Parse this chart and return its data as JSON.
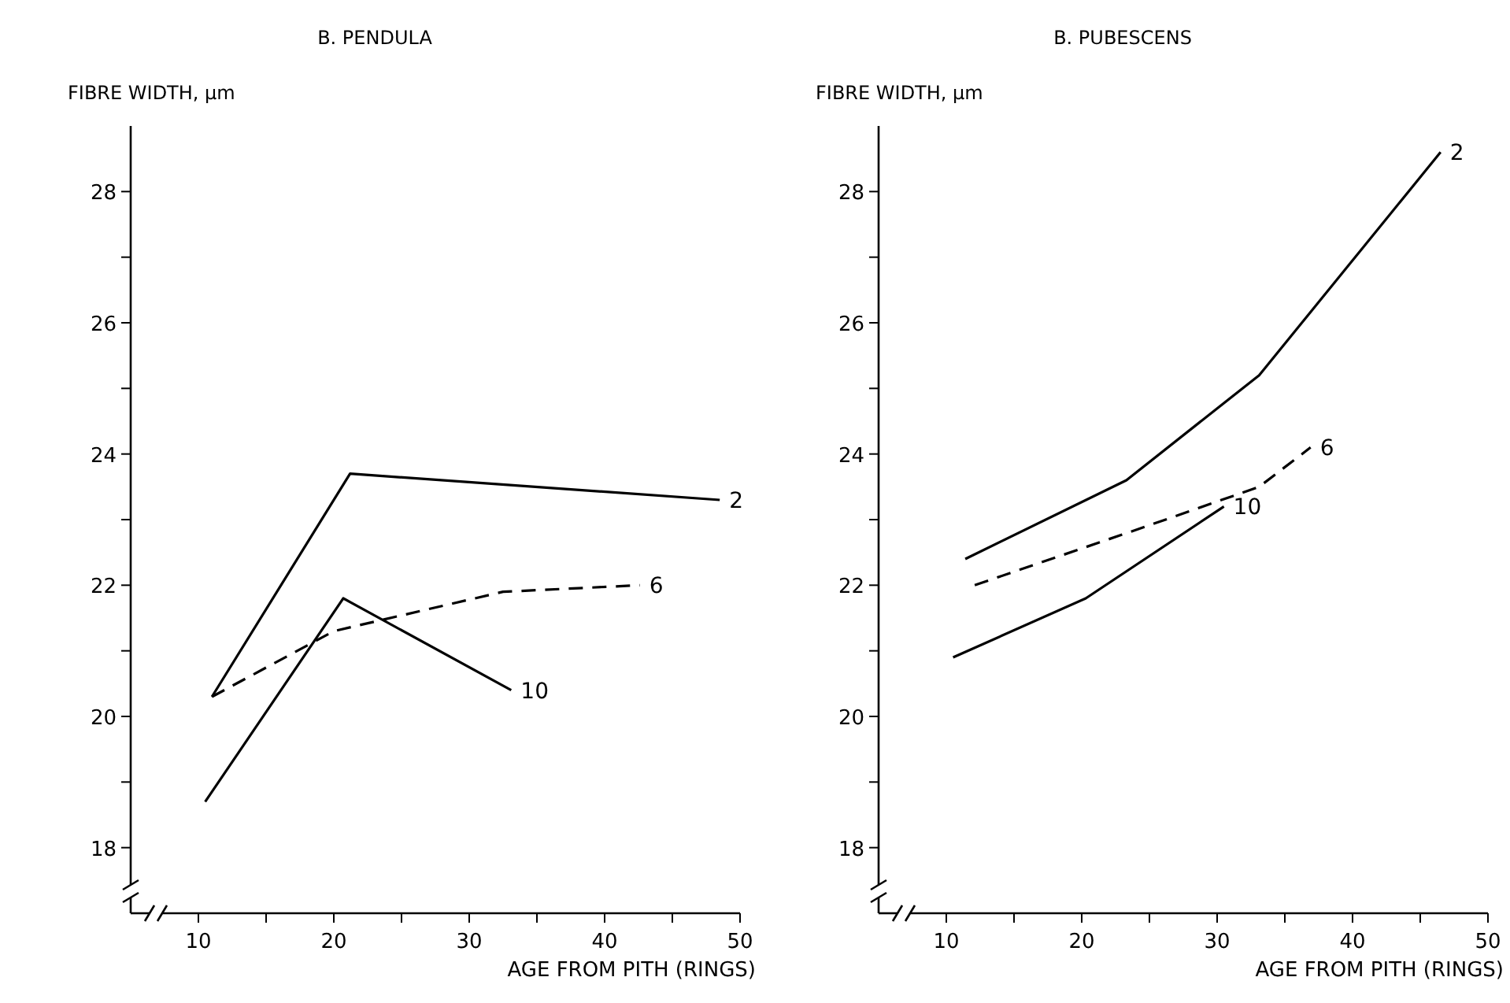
{
  "chart_data": [
    {
      "type": "line",
      "title": "B. PENDULA",
      "ylabel": "FIBRE WIDTH, μm",
      "xlabel": "AGE FROM PITH (RINGS)",
      "xlim": [
        5,
        50
      ],
      "ylim": [
        17,
        29
      ],
      "xticks": [
        10,
        {
          "value": 15,
          "label": null
        },
        20,
        {
          "value": 25,
          "label": null
        },
        30,
        {
          "value": 35,
          "label": null
        },
        40,
        {
          "value": 45,
          "label": null
        },
        50
      ],
      "yticks": [
        18,
        {
          "value": 19,
          "label": null
        },
        20,
        {
          "value": 21,
          "label": null
        },
        22,
        {
          "value": 23,
          "label": null
        },
        24,
        {
          "value": 25,
          "label": null
        },
        26,
        {
          "value": 27,
          "label": null
        },
        28
      ],
      "grid": false,
      "marker": "none",
      "series": [
        {
          "name": "2",
          "color": "#000000",
          "line_style": "solid",
          "x": [
            11,
            21.2,
            48.5
          ],
          "values": [
            20.3,
            23.7,
            23.3
          ]
        },
        {
          "name": "6",
          "color": "#000000",
          "line_style": "dashed",
          "x": [
            11,
            20,
            32.5,
            42.6
          ],
          "values": [
            20.3,
            21.3,
            21.9,
            22
          ]
        },
        {
          "name": "10",
          "color": "#000000",
          "line_style": "solid",
          "x": [
            10.5,
            20.7,
            33.1
          ],
          "values": [
            18.7,
            21.8,
            20.4
          ]
        }
      ]
    },
    {
      "type": "line",
      "title": "B. PUBESCENS",
      "ylabel": "FIBRE WIDTH, μm",
      "xlabel": "AGE FROM PITH (RINGS)",
      "xlim": [
        5,
        50
      ],
      "ylim": [
        17,
        29
      ],
      "xticks": [
        10,
        {
          "value": 15,
          "label": null
        },
        20,
        {
          "value": 25,
          "label": null
        },
        30,
        {
          "value": 35,
          "label": null
        },
        40,
        {
          "value": 45,
          "label": null
        },
        50
      ],
      "yticks": [
        18,
        {
          "value": 19,
          "label": null
        },
        20,
        {
          "value": 21,
          "label": null
        },
        22,
        {
          "value": 23,
          "label": null
        },
        24,
        {
          "value": 25,
          "label": null
        },
        26,
        {
          "value": 27,
          "label": null
        },
        28
      ],
      "grid": false,
      "marker": "none",
      "series": [
        {
          "name": "2",
          "color": "#000000",
          "line_style": "solid",
          "x": [
            11.4,
            23.3,
            33.1,
            46.5
          ],
          "values": [
            22.4,
            23.6,
            25.2,
            28.6
          ]
        },
        {
          "name": "6",
          "color": "#000000",
          "line_style": "dashed",
          "x": [
            12.1,
            24.8,
            33.1,
            36.9
          ],
          "values": [
            22,
            22.9,
            23.5,
            24.1
          ]
        },
        {
          "name": "10",
          "color": "#000000",
          "line_style": "solid",
          "x": [
            10.5,
            20.3,
            30.5
          ],
          "values": [
            20.9,
            21.8,
            23.2
          ]
        }
      ]
    }
  ]
}
